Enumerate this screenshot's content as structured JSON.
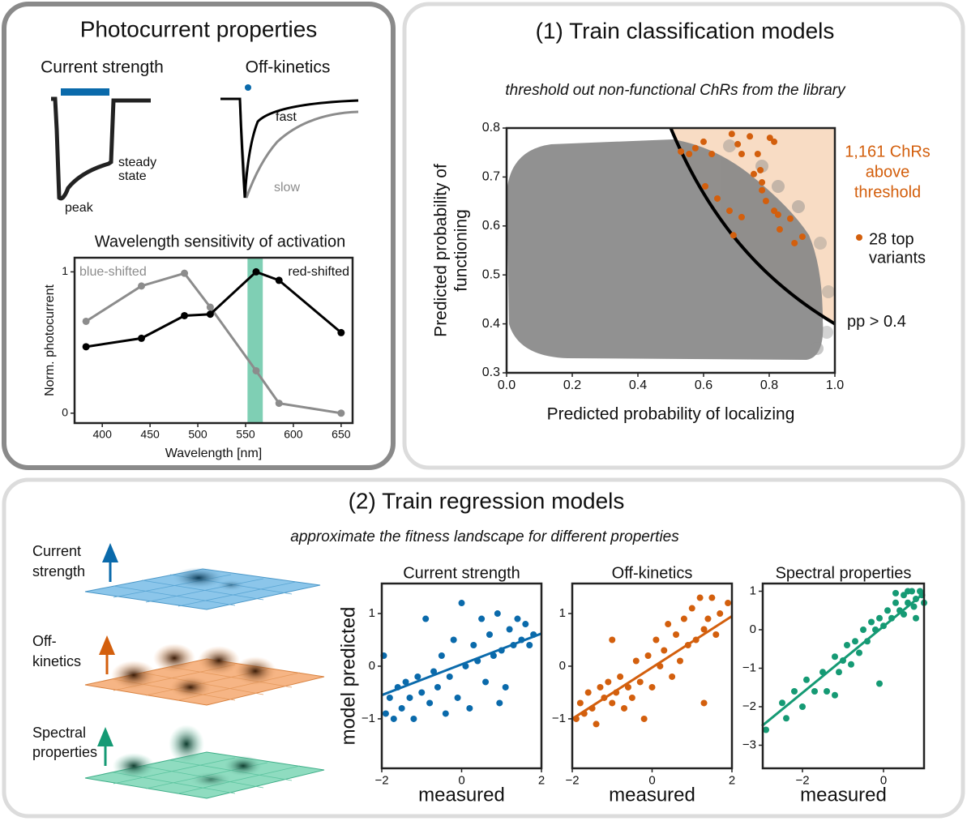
{
  "panel_a": {
    "title": "Photocurrent properties",
    "current_title": "Current strength",
    "peak": "peak",
    "steady_state": [
      "steady",
      "state"
    ],
    "off_title": "Off-kinetics",
    "fast": "fast",
    "slow": "slow"
  },
  "panel_b": {
    "title": "(1) Train classification models",
    "subtitle": "threshold out non-functional ChRs from the library"
  },
  "panel_c": {
    "title": "(2) Train regression models",
    "subtitle": "approximate the fitness landscape for different properties",
    "landscapes": [
      [
        "Current",
        "strength"
      ],
      [
        "Off-",
        "kinetics"
      ],
      [
        "Spectral",
        "properties"
      ]
    ]
  },
  "chart_data": [
    {
      "type": "line",
      "title": "Wavelength sensitivity of activation",
      "x_label": "Wavelength [nm]",
      "y_label": "Norm. photocurrent",
      "x": [
        383,
        441,
        486,
        513,
        561,
        585,
        650
      ],
      "series": [
        {
          "name": "blue-shifted",
          "color": "#8c8c8c",
          "values": [
            0.65,
            0.9,
            0.99,
            0.75,
            0.3,
            0.07,
            0.0
          ]
        },
        {
          "name": "red-shifted",
          "color": "#000000",
          "values": [
            0.47,
            0.53,
            0.69,
            0.7,
            1.0,
            0.94,
            0.57
          ]
        }
      ],
      "xlim": [
        371,
        662
      ],
      "ylim": [
        -0.07,
        1.1
      ],
      "xticks": [
        400,
        450,
        500,
        550,
        600,
        650
      ],
      "yticks": [
        0,
        1
      ],
      "highlight_band": [
        552,
        568
      ],
      "highlight_color": "#7fcfb4"
    },
    {
      "type": "scatter",
      "x_label": "Predicted probability of localizing",
      "y_label": [
        "Predicted probability of",
        "functioning"
      ],
      "xlim": [
        0,
        1
      ],
      "ylim": [
        0.3,
        0.8
      ],
      "xticks": [
        {
          "value": 0,
          "label": "0.0"
        },
        0.2,
        0.4,
        0.6,
        0.8,
        {
          "value": 1,
          "label": "1.0"
        }
      ],
      "yticks": [
        0.3,
        0.4,
        0.5,
        0.6,
        0.7,
        0.8
      ],
      "threshold": 0.4,
      "threshold_label": "pp > 0.4",
      "region_label": [
        "1,161 ChRs",
        "above",
        "threshold"
      ],
      "region_color": "#f8dcc4",
      "region_label_color": "#d35f0d",
      "series": [
        {
          "name": [
            "28 top",
            "variants"
          ],
          "color": "#d35f0d",
          "x": [
            0.531,
            0.556,
            0.575,
            0.6,
            0.625,
            0.686,
            0.704,
            0.716,
            0.741,
            0.765,
            0.773,
            0.802,
            0.815,
            0.753,
            0.778,
            0.605,
            0.642,
            0.679,
            0.716,
            0.778,
            0.815,
            0.827,
            0.832,
            0.864,
            0.901,
            0.877,
            0.79,
            0.691
          ],
          "values": [
            0.752,
            0.747,
            0.759,
            0.772,
            0.747,
            0.788,
            0.767,
            0.747,
            0.783,
            0.747,
            0.714,
            0.78,
            0.772,
            0.706,
            0.689,
            0.681,
            0.656,
            0.631,
            0.618,
            0.673,
            0.631,
            0.623,
            0.593,
            0.615,
            0.578,
            0.565,
            0.651,
            0.581
          ]
        }
      ]
    },
    {
      "type": "scatter",
      "title": "Current strength",
      "x_label": "measured",
      "y_label": "model predicted",
      "xlim": [
        -2,
        2
      ],
      "ylim": [
        -1.94,
        1.57
      ],
      "xticks": [
        {
          "value": -2,
          "label": "−2"
        },
        0,
        2
      ],
      "yticks": [
        {
          "value": -1,
          "label": "−1"
        },
        0,
        1
      ],
      "fit": {
        "x": [
          -2,
          2
        ],
        "y": [
          -0.55,
          0.62
        ]
      },
      "series": [
        {
          "color": "#0a6aab",
          "x": [
            -1.9,
            -1.8,
            -1.7,
            -1.6,
            -1.5,
            -1.4,
            -1.3,
            -1.2,
            -1.1,
            -1.0,
            -0.9,
            -0.8,
            -0.7,
            -0.6,
            -0.5,
            -0.4,
            -0.3,
            -0.2,
            -0.1,
            0.0,
            0.1,
            0.2,
            0.3,
            0.4,
            0.5,
            0.6,
            0.7,
            0.8,
            0.9,
            1.0,
            1.1,
            1.2,
            1.3,
            1.4,
            1.5,
            1.6,
            1.7,
            1.8,
            -1.95,
            0.95
          ],
          "values": [
            -0.9,
            -0.6,
            -1.0,
            -0.4,
            -0.8,
            -0.3,
            -0.6,
            -1.0,
            -0.2,
            -0.5,
            0.9,
            -0.7,
            -0.1,
            -0.4,
            0.2,
            -0.9,
            -0.2,
            0.5,
            -0.6,
            1.2,
            0.0,
            -0.8,
            0.4,
            0.1,
            0.9,
            -0.3,
            0.6,
            0.2,
            1.0,
            0.3,
            -0.4,
            0.7,
            0.4,
            0.9,
            0.5,
            0.8,
            0.4,
            0.6,
            0.2,
            -0.7
          ]
        }
      ]
    },
    {
      "type": "scatter",
      "title": "Off-kinetics",
      "x_label": "measured",
      "xlim": [
        -2,
        2
      ],
      "ylim": [
        -1.94,
        1.57
      ],
      "xticks": [
        {
          "value": -2,
          "label": "−2"
        },
        0,
        2
      ],
      "yticks": [
        {
          "value": -1,
          "label": "−1"
        },
        0,
        1
      ],
      "fit": {
        "x": [
          -2,
          2
        ],
        "y": [
          -1.0,
          0.95
        ]
      },
      "series": [
        {
          "color": "#d35f0d",
          "x": [
            -1.9,
            -1.8,
            -1.7,
            -1.6,
            -1.5,
            -1.4,
            -1.3,
            -1.2,
            -1.1,
            -1.0,
            -0.9,
            -0.8,
            -0.7,
            -0.6,
            -0.5,
            -0.4,
            -0.3,
            -0.2,
            -0.1,
            0.0,
            0.1,
            0.2,
            0.3,
            0.4,
            0.5,
            0.6,
            0.7,
            0.8,
            0.9,
            1.0,
            1.1,
            1.2,
            1.3,
            1.4,
            1.5,
            1.6,
            1.7,
            1.9,
            1.3,
            -1.0
          ],
          "values": [
            -1.0,
            -0.7,
            -0.9,
            -0.5,
            -0.8,
            -1.1,
            -0.4,
            -0.6,
            -0.3,
            -0.7,
            -0.5,
            -0.2,
            -0.8,
            -0.4,
            -0.6,
            0.1,
            -0.3,
            -1.0,
            0.2,
            -0.4,
            0.5,
            0.0,
            0.3,
            0.8,
            -0.2,
            0.6,
            0.1,
            0.9,
            0.4,
            1.1,
            0.5,
            1.3,
            0.7,
            0.9,
            1.3,
            0.6,
            1.0,
            1.2,
            -0.7,
            0.5
          ]
        }
      ]
    },
    {
      "type": "scatter",
      "title": "Spectral properties",
      "x_label": "measured",
      "xlim": [
        -2.98,
        1.0
      ],
      "ylim": [
        -3.6,
        1.2
      ],
      "xticks": [
        {
          "value": -2,
          "label": "−2"
        },
        0
      ],
      "yticks": [
        {
          "value": -3,
          "label": "−3"
        },
        {
          "value": -2,
          "label": "−2"
        },
        {
          "value": -1,
          "label": "−1"
        },
        0,
        1
      ],
      "fit": {
        "x": [
          -3,
          1
        ],
        "y": [
          -2.5,
          0.95
        ]
      },
      "series": [
        {
          "color": "#159a74",
          "x": [
            -2.9,
            -2.5,
            -2.4,
            -2.2,
            -2.0,
            -1.9,
            -1.7,
            -1.5,
            -1.4,
            -1.2,
            -1.1,
            -1.0,
            -0.9,
            -0.8,
            -0.7,
            -0.6,
            -0.5,
            -0.4,
            -0.3,
            -0.2,
            -0.1,
            0.0,
            0.1,
            0.2,
            0.3,
            0.4,
            0.5,
            0.6,
            0.7,
            0.8,
            0.9,
            1.0,
            0.5,
            0.8,
            0.95,
            0.6,
            -0.1,
            -1.2,
            0.3,
            0.75
          ],
          "values": [
            -2.6,
            -1.9,
            -2.3,
            -1.6,
            -2.0,
            -1.3,
            -1.6,
            -1.1,
            -1.6,
            -0.7,
            -1.1,
            -0.8,
            -0.4,
            -0.9,
            -0.3,
            -0.6,
            0.0,
            -0.3,
            0.2,
            0.0,
            0.3,
            0.1,
            0.5,
            0.3,
            0.7,
            0.5,
            0.9,
            0.7,
            1.0,
            0.8,
            1.0,
            0.7,
            0.4,
            0.3,
            0.9,
            1.0,
            -1.4,
            -1.7,
            0.95,
            0.6
          ]
        }
      ]
    }
  ]
}
